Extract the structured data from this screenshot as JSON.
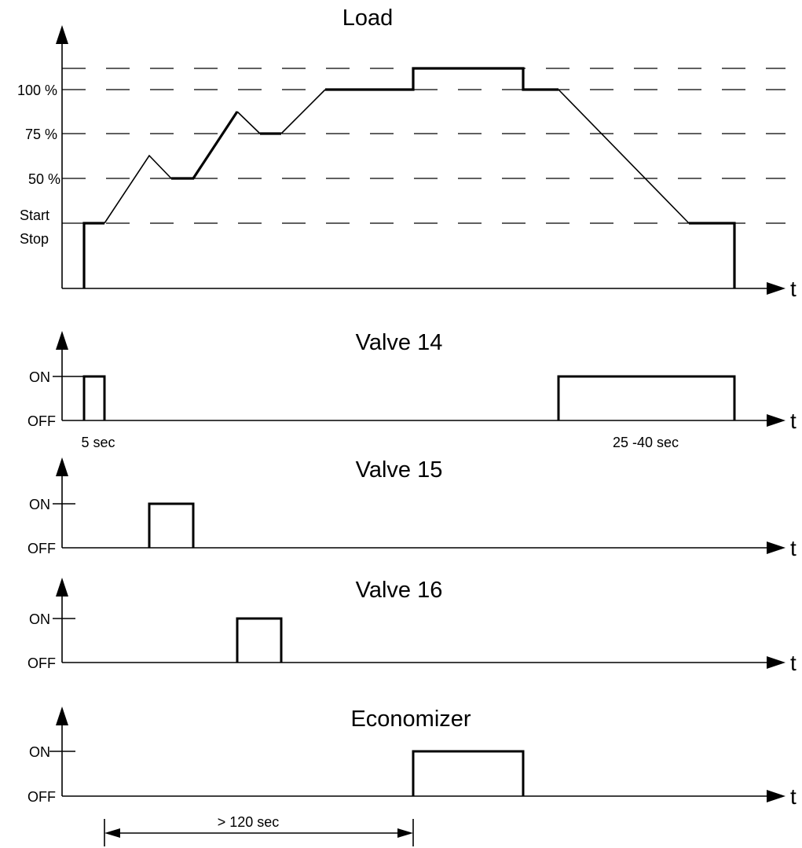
{
  "charts": [
    {
      "id": "load",
      "title": "Load",
      "axis_label": "t",
      "levels": [
        "100 %",
        "75 %",
        "50 %"
      ],
      "start_stop": [
        "Start",
        "Stop"
      ]
    },
    {
      "id": "valve14",
      "title": "Valve 14",
      "axis_label": "t",
      "on": "ON",
      "off": "OFF",
      "annotations": [
        "5 sec",
        "25 -40  sec"
      ]
    },
    {
      "id": "valve15",
      "title": "Valve 15",
      "axis_label": "t",
      "on": "ON",
      "off": "OFF"
    },
    {
      "id": "valve16",
      "title": "Valve 16",
      "axis_label": "t",
      "on": "ON",
      "off": "OFF"
    },
    {
      "id": "economizer",
      "title": "Economizer",
      "axis_label": "t",
      "on": "ON",
      "off": "OFF"
    }
  ],
  "duration_marker": "> 120 sec"
}
